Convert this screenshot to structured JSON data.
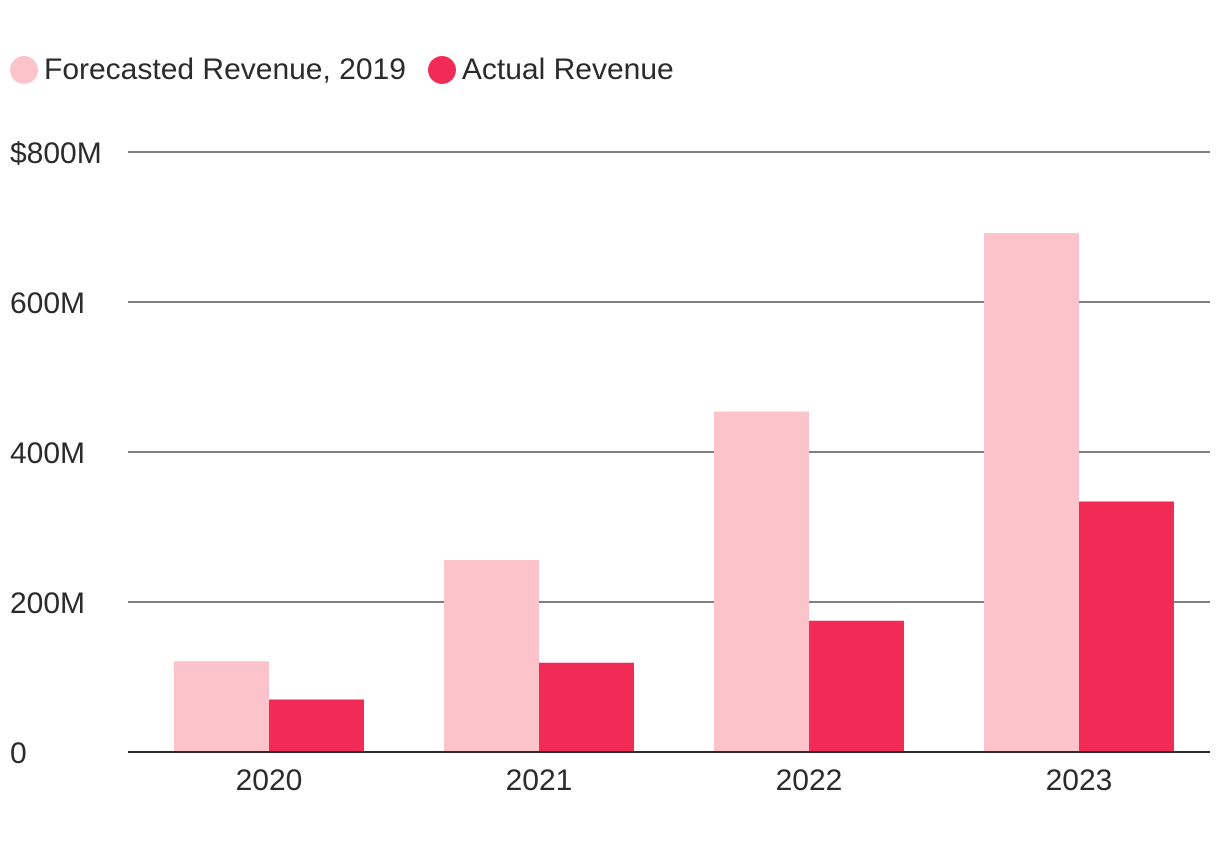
{
  "chart_data": {
    "type": "bar",
    "title": "",
    "xlabel": "",
    "ylabel": "",
    "categories": [
      "2020",
      "2021",
      "2022",
      "2023"
    ],
    "series": [
      {
        "name": "Forecasted Revenue, 2019",
        "color": "#fcc3cb",
        "values": [
          121,
          256,
          454,
          692
        ]
      },
      {
        "name": "Actual Revenue",
        "color": "#f22b56",
        "values": [
          70,
          119,
          175,
          334
        ]
      }
    ],
    "ylim": [
      0,
      800
    ],
    "yticks": [
      {
        "value": 0,
        "label": "0"
      },
      {
        "value": 200,
        "label": "200M"
      },
      {
        "value": 400,
        "label": "400M"
      },
      {
        "value": 600,
        "label": "600M"
      },
      {
        "value": 800,
        "label": "$800M"
      }
    ],
    "grid": true,
    "legend_position": "top-left"
  }
}
